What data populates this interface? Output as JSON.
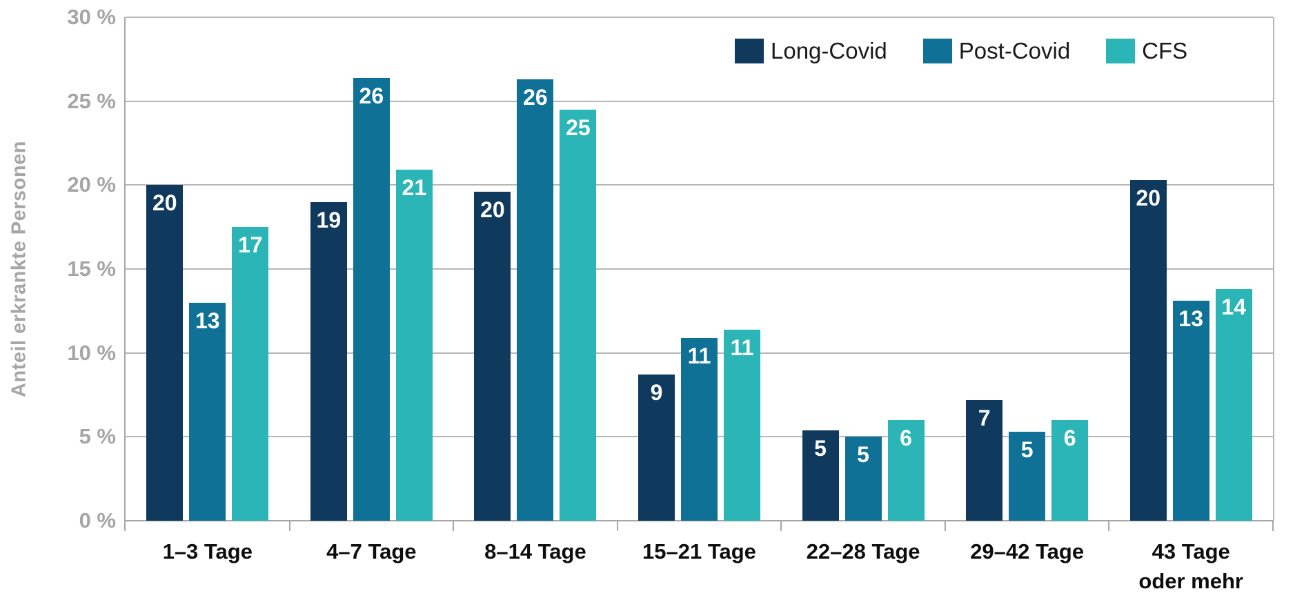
{
  "chart_data": {
    "type": "bar",
    "title": "",
    "ylabel": "Anteil erkrankte Personen",
    "xlabel": "",
    "ylim": [
      0,
      30
    ],
    "grid": true,
    "legend_position": "top-right",
    "y_ticks": [
      {
        "label": "30 %",
        "value": 30
      },
      {
        "label": "25 %",
        "value": 25
      },
      {
        "label": "20 %",
        "value": 20
      },
      {
        "label": "15 %",
        "value": 15
      },
      {
        "label": "10 %",
        "value": 10
      },
      {
        "label": "5 %",
        "value": 5
      },
      {
        "label": "0 %",
        "value": 0
      }
    ],
    "categories": [
      "1–3 Tage",
      "4–7 Tage",
      "8–14 Tage",
      "15–21 Tage",
      "22–28 Tage",
      "29–42 Tage",
      "43 Tage\noder mehr"
    ],
    "series": [
      {
        "name": "Long-Covid",
        "color": "#0f3a5d",
        "values": [
          20,
          19,
          20,
          9,
          5,
          7,
          20
        ],
        "heights_pct": [
          20.0,
          19.0,
          19.6,
          8.7,
          5.4,
          7.2,
          20.3
        ]
      },
      {
        "name": "Post-Covid",
        "color": "#0f7195",
        "values": [
          13,
          26,
          26,
          11,
          5,
          5,
          13
        ],
        "heights_pct": [
          13.0,
          26.4,
          26.3,
          10.9,
          5.0,
          5.3,
          13.1
        ]
      },
      {
        "name": "CFS",
        "color": "#2bb5b6",
        "values": [
          17,
          21,
          25,
          11,
          6,
          6,
          14
        ],
        "heights_pct": [
          17.5,
          20.9,
          24.5,
          11.4,
          6.0,
          6.0,
          13.8
        ]
      }
    ],
    "value_label_color": "#ffffff",
    "gridline_color": "#b7b7b7",
    "axis_color": "#a6a6a6",
    "tick_label_color": "#a6a6a6"
  }
}
